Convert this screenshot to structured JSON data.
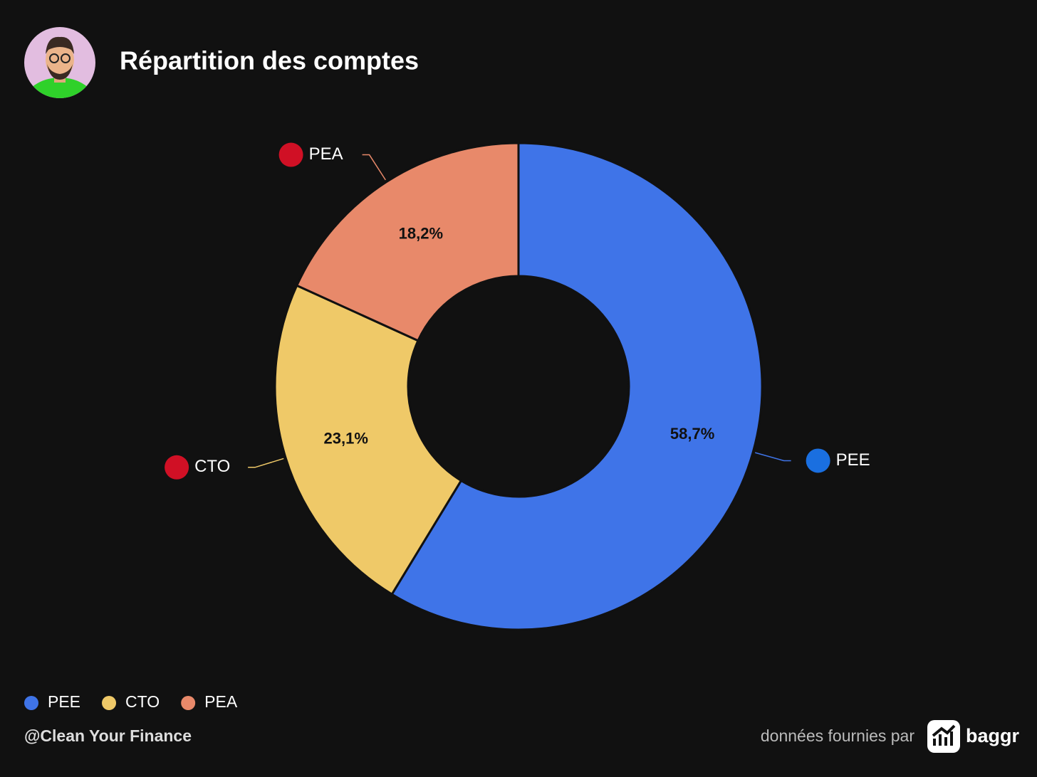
{
  "chart_data": {
    "type": "pie",
    "title": "Répartition des comptes",
    "categories": [
      "PEE",
      "CTO",
      "PEA"
    ],
    "values": [
      58.7,
      23.1,
      18.2
    ],
    "value_labels": [
      "58,7%",
      "23,1%",
      "18,2%"
    ],
    "colors": [
      "#3f74e8",
      "#efc968",
      "#e8896a"
    ],
    "icon_colors": [
      "#1a6fe0",
      "#d01025",
      "#d01025"
    ],
    "donut": true,
    "legend": "bottom-left",
    "footer": "@Clean Your Finance",
    "source": "données fournies par",
    "brand": "baggr"
  }
}
